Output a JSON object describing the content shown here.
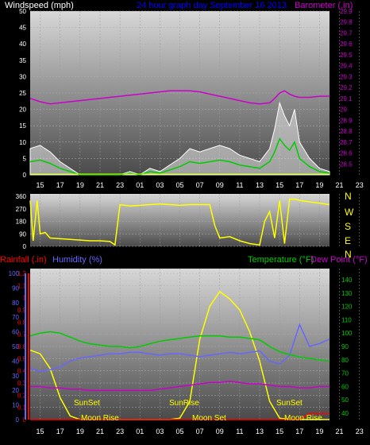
{
  "panels": {
    "wind": {
      "label_left": "Windspeed (mph)",
      "title": "24 hour graph day   September 16 2013",
      "label_right": "Barometer (.in)",
      "y_ticks": [
        "0",
        "5",
        "10",
        "15",
        "20",
        "25",
        "30",
        "35",
        "40",
        "45",
        "50"
      ],
      "baro_ticks": [
        "28.5",
        "28.6",
        "28.7",
        "28.8",
        "28.9",
        "29",
        "29.1",
        "29.2",
        "29.3",
        "29.4",
        "29.5",
        "29.6",
        "29.7",
        "29.8",
        "29.9"
      ]
    },
    "direction": {
      "y_ticks": [
        "0",
        "90",
        "180",
        "270",
        "360"
      ],
      "compass": [
        "N",
        "W",
        "S",
        "E",
        "N"
      ]
    },
    "weather": {
      "label_rain": "Rainfall (.in)",
      "label_humidity": "Humidity (%)",
      "label_temp": "Temperature (°F)",
      "label_dew": "Dew Point (°F)",
      "rain_ticks": [
        "0",
        "0.1",
        "0.2",
        "0.3",
        "0.4",
        "0.5",
        "0.6",
        "0.7",
        "0.8",
        "0.9",
        "1",
        "1.1",
        "1.2"
      ],
      "humidity_ticks": [
        "0",
        "10",
        "20",
        "30",
        "40",
        "50",
        "60",
        "70",
        "80",
        "90",
        "100"
      ],
      "temp_ticks": [
        "40",
        "50",
        "60",
        "70",
        "80",
        "90",
        "100",
        "110",
        "120",
        "130",
        "140"
      ],
      "annotations": [
        "SunSet",
        "SunRise",
        "SunSet",
        "Moon Rise",
        "Moon Set",
        "Moon Rise"
      ]
    }
  },
  "x_ticks": [
    "15",
    "17",
    "19",
    "21",
    "23",
    "01",
    "03",
    "05",
    "07",
    "09",
    "11",
    "13",
    "15",
    "17",
    "19",
    "21",
    "23"
  ],
  "colors": {
    "wind": "#ffffff",
    "gust": "#d0d0d0",
    "wind_avg": "#00cc00",
    "baro": "#cc00cc",
    "direction": "#ffff00",
    "temp": "#00cc00",
    "humidity": "#6666ff",
    "dew": "#cc00cc",
    "solar": "#ffff00",
    "rain": "#ff0000",
    "title": "#0000ff"
  },
  "chart_data": [
    {
      "type": "line",
      "x": [
        14,
        15,
        16,
        17,
        18,
        19,
        20,
        21,
        22,
        23,
        24,
        25,
        26,
        27,
        28,
        29,
        30,
        31,
        32,
        33,
        34,
        35,
        36,
        37,
        38,
        38.5,
        39,
        39.5,
        40,
        40.5,
        41,
        42,
        43,
        44
      ],
      "series": [
        {
          "name": "Windspeed (mph)",
          "values": [
            8,
            9,
            7,
            4,
            2,
            0,
            0,
            0,
            0,
            0,
            1,
            0,
            2,
            1,
            3,
            5,
            8,
            7,
            8,
            9,
            8,
            6,
            5,
            4,
            8,
            14,
            22,
            18,
            15,
            20,
            10,
            5,
            2,
            1
          ]
        },
        {
          "name": "Barometer (.in)",
          "values": [
            29.1,
            29.07,
            29.05,
            29.06,
            29.07,
            29.08,
            29.09,
            29.1,
            29.11,
            29.12,
            29.13,
            29.14,
            29.15,
            29.16,
            29.17,
            29.17,
            29.17,
            29.16,
            29.14,
            29.12,
            29.1,
            29.08,
            29.06,
            29.05,
            29.06,
            29.1,
            29.15,
            29.17,
            29.14,
            29.12,
            29.11,
            29.11,
            29.12,
            29.12
          ]
        }
      ],
      "ylim": [
        0,
        50
      ],
      "ylim_right": [
        28.4,
        29.9
      ]
    },
    {
      "type": "line",
      "x": [
        14,
        14.3,
        14.7,
        15,
        15.5,
        16,
        17,
        18,
        19,
        20,
        21,
        22,
        22.5,
        23,
        24,
        25,
        26,
        27,
        28,
        29,
        30,
        31,
        32,
        32.5,
        33,
        34,
        35,
        36,
        37,
        37.5,
        38,
        38.5,
        39,
        39.5,
        40,
        40.5,
        41,
        42,
        43,
        44
      ],
      "series": [
        {
          "name": "Wind Direction",
          "values": [
            330,
            40,
            330,
            90,
            100,
            60,
            55,
            50,
            45,
            40,
            40,
            35,
            10,
            300,
            290,
            295,
            300,
            305,
            300,
            295,
            300,
            300,
            300,
            150,
            60,
            70,
            40,
            20,
            10,
            180,
            250,
            60,
            330,
            20,
            340,
            340,
            330,
            320,
            310,
            300
          ]
        }
      ],
      "ylim": [
        0,
        360
      ]
    },
    {
      "type": "line",
      "x": [
        14,
        15,
        16,
        17,
        18,
        19,
        20,
        21,
        22,
        23,
        24,
        25,
        26,
        27,
        28,
        29,
        30,
        31,
        32,
        33,
        34,
        35,
        36,
        37,
        38,
        39,
        40,
        41,
        42,
        43,
        44
      ],
      "series": [
        {
          "name": "Temperature (°F)",
          "values": [
            98,
            100,
            101,
            100,
            97,
            94,
            92,
            91,
            90,
            90,
            89,
            90,
            92,
            94,
            95,
            96,
            97,
            98,
            98,
            98,
            97,
            97,
            96,
            95,
            90,
            86,
            84,
            82,
            81,
            80,
            79
          ]
        },
        {
          "name": "Humidity (%)",
          "values": [
            35,
            33,
            34,
            36,
            40,
            42,
            43,
            44,
            45,
            45,
            46,
            46,
            45,
            44,
            45,
            45,
            44,
            43,
            44,
            45,
            46,
            45,
            46,
            47,
            40,
            38,
            44,
            65,
            50,
            52,
            55
          ]
        },
        {
          "name": "Dew Point (°F)",
          "values": [
            60,
            60,
            59,
            59,
            58,
            58,
            57,
            57,
            57,
            57,
            57,
            57,
            57,
            58,
            59,
            60,
            61,
            62,
            63,
            63,
            64,
            63,
            62,
            62,
            61,
            60,
            60,
            59,
            59,
            60,
            60
          ]
        },
        {
          "name": "Solar",
          "values": [
            95,
            90,
            70,
            30,
            5,
            0,
            0,
            0,
            0,
            0,
            0,
            0,
            0,
            0,
            0,
            2,
            25,
            110,
            155,
            175,
            165,
            150,
            120,
            80,
            25,
            2,
            0,
            0,
            0,
            0,
            0
          ]
        },
        {
          "name": "Rainfall (.in)",
          "values": [
            0,
            0,
            0,
            0,
            0,
            0,
            0,
            0,
            0,
            0,
            0,
            0,
            0,
            0,
            0,
            0,
            0,
            0,
            0,
            0,
            0,
            0,
            0,
            0,
            0,
            0,
            0,
            0,
            0.05,
            0.05,
            0.05
          ]
        }
      ],
      "ylim_humidity": [
        0,
        100
      ],
      "ylim_rain": [
        0,
        1.2
      ],
      "ylim_temp": [
        40,
        140
      ]
    }
  ]
}
